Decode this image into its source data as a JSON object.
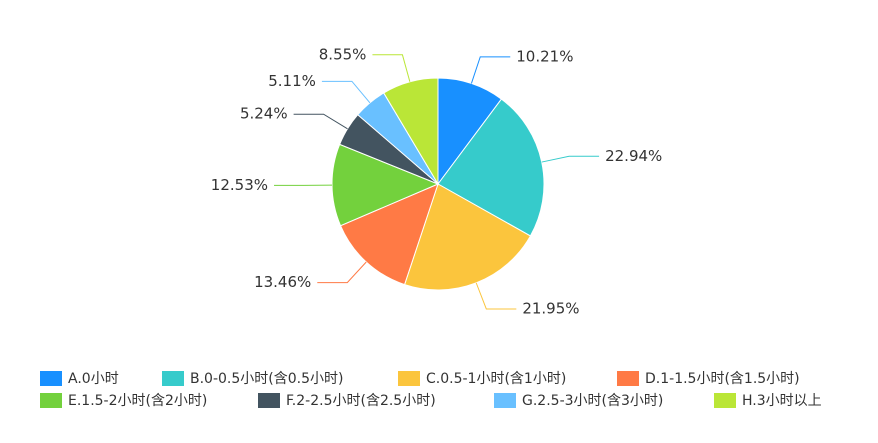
{
  "chart_data": {
    "type": "pie",
    "categories": [
      "A.0小时",
      "B.0-0.5小时(含0.5小时)",
      "C.0.5-1小时(含1小时)",
      "D.1-1.5小时(含1.5小时)",
      "E.1.5-2小时(含2小时)",
      "F.2-2.5小时(含2.5小时)",
      "G.2.5-3小时(含3小时)",
      "H.3小时以上"
    ],
    "values": [
      10.21,
      22.94,
      21.95,
      13.46,
      12.53,
      5.24,
      5.11,
      8.55
    ],
    "value_labels": [
      "10.21%",
      "22.94%",
      "21.95%",
      "13.46%",
      "12.53%",
      "5.24%",
      "5.11%",
      "8.55%"
    ],
    "colors": [
      "#1890ff",
      "#36cbcb",
      "#fbc53d",
      "#ff7a45",
      "#73d13d",
      "#435460",
      "#69c0ff",
      "#bae637"
    ],
    "legend": "bottom"
  }
}
